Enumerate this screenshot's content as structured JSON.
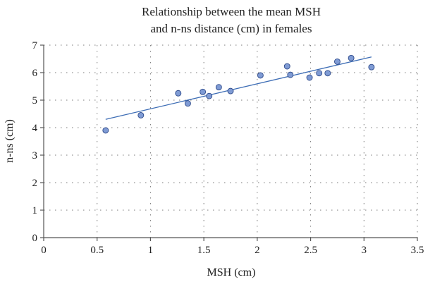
{
  "chart_data": {
    "type": "scatter",
    "title_lines": [
      "Relationship between the mean MSH",
      "and n-ns distance (cm) in females"
    ],
    "xlabel": "MSH (cm)",
    "ylabel": "n-ns (cm)",
    "xlim": [
      0,
      3.5
    ],
    "ylim": [
      0,
      7
    ],
    "x_ticks": [
      0,
      0.5,
      1,
      1.5,
      2,
      2.5,
      3,
      3.5
    ],
    "x_tick_labels": [
      "0",
      "0.5",
      "1",
      "1.5",
      "2",
      "2.5",
      "3",
      "3.5"
    ],
    "y_ticks": [
      0,
      1,
      2,
      3,
      4,
      5,
      6,
      7
    ],
    "y_tick_labels": [
      "0",
      "1",
      "2",
      "3",
      "4",
      "5",
      "6",
      "7"
    ],
    "grid": "dotted",
    "legend": "none",
    "series": [
      {
        "points": [
          {
            "x": 0.58,
            "y": 3.9
          },
          {
            "x": 0.91,
            "y": 4.45
          },
          {
            "x": 1.26,
            "y": 5.25
          },
          {
            "x": 1.35,
            "y": 4.88
          },
          {
            "x": 1.49,
            "y": 5.3
          },
          {
            "x": 1.55,
            "y": 5.15
          },
          {
            "x": 1.64,
            "y": 5.47
          },
          {
            "x": 1.75,
            "y": 5.33
          },
          {
            "x": 2.03,
            "y": 5.9
          },
          {
            "x": 2.28,
            "y": 6.23
          },
          {
            "x": 2.31,
            "y": 5.92
          },
          {
            "x": 2.49,
            "y": 5.82
          },
          {
            "x": 2.58,
            "y": 5.98
          },
          {
            "x": 2.66,
            "y": 5.98
          },
          {
            "x": 2.75,
            "y": 6.4
          },
          {
            "x": 2.88,
            "y": 6.53
          },
          {
            "x": 3.07,
            "y": 6.2
          }
        ]
      }
    ],
    "trendline": {
      "x": [
        0.58,
        3.07
      ],
      "y": [
        4.3,
        6.57
      ]
    },
    "colors": {
      "marker_fill": "#7f9bd4",
      "marker_stroke": "#2e4a8a",
      "trendline": "#3d6db5",
      "axis": "#555555",
      "grid": "#7a7a7a"
    }
  }
}
